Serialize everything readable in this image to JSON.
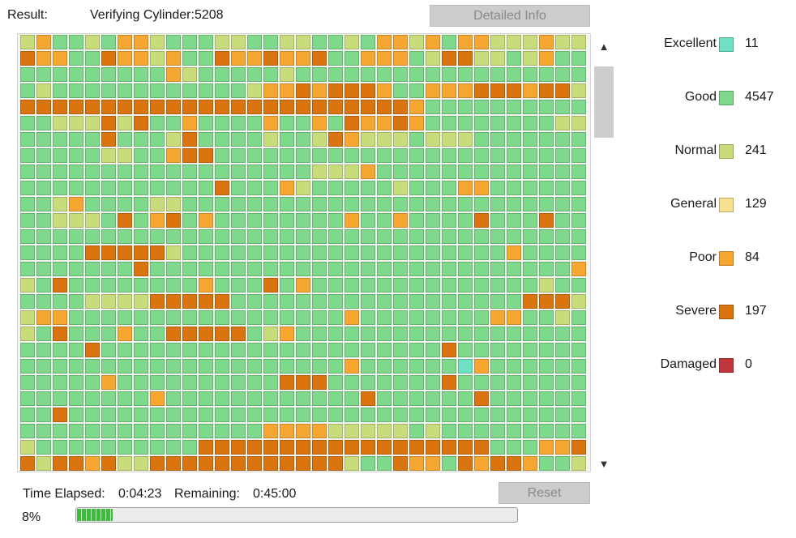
{
  "header": {
    "result_label": "Result:",
    "status_text": "Verifying Cylinder:5208",
    "detailed_info_label": "Detailed Info"
  },
  "legend": [
    {
      "name": "Excellent",
      "color": "#6fe0c2",
      "count": "11"
    },
    {
      "name": "Good",
      "color": "#7fd98a",
      "count": "4547"
    },
    {
      "name": "Normal",
      "color": "#c8dc7c",
      "count": "241"
    },
    {
      "name": "General",
      "color": "#f6e08f",
      "count": "129"
    },
    {
      "name": "Poor",
      "color": "#f5a732",
      "count": "84"
    },
    {
      "name": "Severe",
      "color": "#d9740f",
      "count": "197"
    },
    {
      "name": "Damaged",
      "color": "#c1363d",
      "count": "0"
    }
  ],
  "scrollbar": {
    "up_icon": "chevron-up-icon",
    "down_icon": "chevron-down-icon"
  },
  "footer": {
    "time_elapsed_label": "Time Elapsed:",
    "time_elapsed_value": "0:04:23",
    "remaining_label": "Remaining:",
    "remaining_value": "0:45:00",
    "reset_label": "Reset",
    "progress_text": "8%",
    "progress_value": 8
  },
  "grid": {
    "rows": 27,
    "columns": 35,
    "cells": [
      "NPGGNGPPNGGGNNGGNNGGNGPPNPGPPNNNPNN",
      "SPPGGSPPNPGGSPPSPPSGGPPPGNSSNNGNPGG",
      "GGGGGGGGGPNGGGGGNGGGGGGGGGGGGGGGGGG",
      "GNGGGGGGGGGGGGNPPSPSSSPGGPPPSSSPSSN",
      "SSSSSSSSSSSSSSSSSSSSSSSSPGGGGGGGGGG",
      "GGNNNSNSGGPGGGGPGGPGSPPSPGGGGGGGGNN",
      "GGGGGSGGGNSGGGGNGGNSPNNNGNNNGGGGGGG",
      "GGGGGNNGGPSSGGGGGGGGGGGGGGGGGGGGGGG",
      "GGGGGGGGGGGGGGGGGGNNNPGGGGGGGGGGGGG",
      "GGGGGGGGGGGGSGGGPNGGGGGNGGGPPGGGGGG",
      "GGNPGGGGNNGGGGGGGGGGGGGGGGGGGGGGGGG",
      "GGNNNGSGPSGPGGGGGGGGPGGPGGGGSGGGSGG",
      "GGGGGGGGGGGGGGGGGGGGGGGGGGGGGGGGGGG",
      "GGGGSSSSSNGGGGGGGGGGGGGGGGGGGGPGGGG",
      "GGGGGGGSGGGGGGGGGGGGGGGGGGGGGGGGGGP",
      "NGSGGGGGGGGPGGGSGPGGGGGGGGGGGGGGNGG",
      "GGGGNNNNSSSSSGGGGGGGGGGGGGGGGGGSSSN",
      "NPPGGGGGGGGGGGGGGGGGPGGGGGGGGPPGGNG",
      "NGSGGGPGGSSSSSGNPGGGGGGGGGGGGGGGGGG",
      "GGGGSGGGGGGGGGGGGGGGGGGGGGSGGGGGGGG",
      "GGGGGGGGGGGGGGGGGGGGPGGGGGGEPGGGGGG",
      "GGGGGPGGGGGGGGGGSSSGGGGGGGSGGGGGGGG",
      "GGGGGGGGPGGGGGGGGGGGGSGGGGGGSGGGGGG",
      "GGSGGGGGGGGGGGGGGGGGGGGGGGGGGGGGGGG",
      "GGGGGGGGGGGGGGGPPPPNNNNNGNGGGGGGGGG",
      "NGGGGGGGGGGSSSSSSSSSSSSSSSSSSGGGPPS",
      "SNSSPSNNSSSSSSSSSSSSNGGSPPGSPSSPGGN"
    ]
  }
}
